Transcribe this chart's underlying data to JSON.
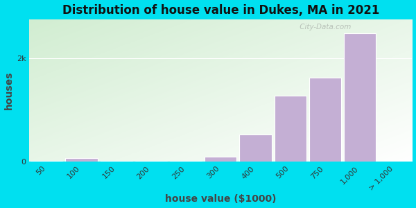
{
  "title": "Distribution of house value in Dukes, MA in 2021",
  "xlabel": "house value ($1000)",
  "ylabel": "houses",
  "categories": [
    "50",
    "100",
    "150",
    "200",
    "250",
    "300",
    "400",
    "500",
    "750",
    "1,000",
    "> 1,000"
  ],
  "values": [
    20,
    65,
    8,
    8,
    8,
    95,
    520,
    1280,
    1620,
    2480,
    0
  ],
  "bar_color": "#c4afd4",
  "bar_edge_color": "#ffffff",
  "background_outer": "#00e0f0",
  "ytick_labels": [
    "0",
    "2k"
  ],
  "ytick_values": [
    0,
    2000
  ],
  "ymax": 2750,
  "title_fontsize": 12,
  "label_fontsize": 10,
  "tick_fontsize": 8,
  "watermark": " City-Data.com"
}
